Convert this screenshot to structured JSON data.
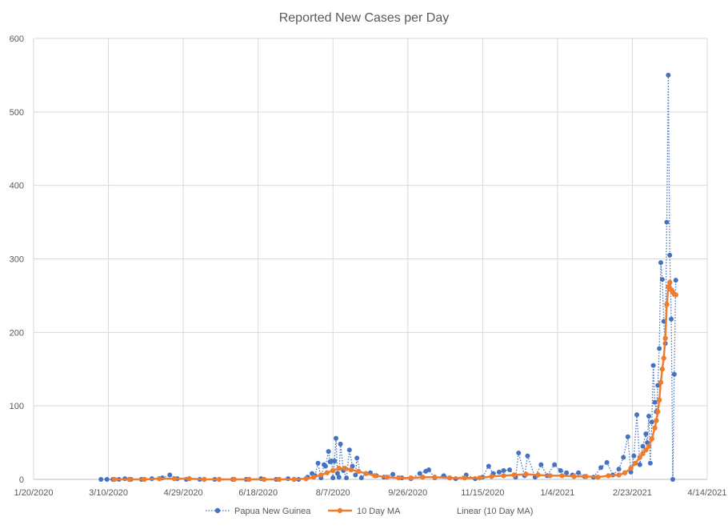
{
  "chart_data": {
    "type": "line",
    "title": "Reported New Cases per Day",
    "xlabel": "",
    "ylabel": "",
    "ylim": [
      0,
      600
    ],
    "yticks": [
      0,
      100,
      200,
      300,
      400,
      500,
      600
    ],
    "xlim": [
      "2020-01-20",
      "2021-04-14"
    ],
    "xticks": [
      "1/20/2020",
      "3/10/2020",
      "4/29/2020",
      "6/18/2020",
      "8/7/2020",
      "9/26/2020",
      "11/15/2020",
      "1/4/2021",
      "2/23/2021",
      "4/14/2021"
    ],
    "grid": true,
    "legend": "bottom",
    "colors": {
      "series": "#4472c4",
      "ma": "#ed7d31",
      "grid": "#d9d9d9",
      "text": "#595959"
    },
    "series": [
      {
        "name": "Papua New Guinea",
        "style": "dotted-markers",
        "points": [
          [
            "2020-03-05",
            0
          ],
          [
            "2020-03-09",
            0
          ],
          [
            "2020-03-13",
            0
          ],
          [
            "2020-03-17",
            0
          ],
          [
            "2020-03-21",
            1
          ],
          [
            "2020-03-25",
            0
          ],
          [
            "2020-04-01",
            0
          ],
          [
            "2020-04-08",
            1
          ],
          [
            "2020-04-15",
            2
          ],
          [
            "2020-04-20",
            6
          ],
          [
            "2020-04-25",
            1
          ],
          [
            "2020-05-01",
            0
          ],
          [
            "2020-05-10",
            0
          ],
          [
            "2020-05-20",
            0
          ],
          [
            "2020-06-01",
            0
          ],
          [
            "2020-06-10",
            0
          ],
          [
            "2020-06-20",
            1
          ],
          [
            "2020-06-30",
            0
          ],
          [
            "2020-07-08",
            1
          ],
          [
            "2020-07-15",
            0
          ],
          [
            "2020-07-21",
            3
          ],
          [
            "2020-07-24",
            8
          ],
          [
            "2020-07-26",
            5
          ],
          [
            "2020-07-28",
            22
          ],
          [
            "2020-07-30",
            2
          ],
          [
            "2020-08-01",
            20
          ],
          [
            "2020-08-02",
            18
          ],
          [
            "2020-08-04",
            38
          ],
          [
            "2020-08-05",
            24
          ],
          [
            "2020-08-06",
            25
          ],
          [
            "2020-08-07",
            2
          ],
          [
            "2020-08-08",
            25
          ],
          [
            "2020-08-09",
            56
          ],
          [
            "2020-08-10",
            8
          ],
          [
            "2020-08-11",
            3
          ],
          [
            "2020-08-12",
            48
          ],
          [
            "2020-08-14",
            12
          ],
          [
            "2020-08-16",
            2
          ],
          [
            "2020-08-18",
            40
          ],
          [
            "2020-08-20",
            18
          ],
          [
            "2020-08-22",
            6
          ],
          [
            "2020-08-23",
            29
          ],
          [
            "2020-08-26",
            2
          ],
          [
            "2020-08-29",
            8
          ],
          [
            "2020-09-01",
            9
          ],
          [
            "2020-09-05",
            5
          ],
          [
            "2020-09-10",
            3
          ],
          [
            "2020-09-16",
            7
          ],
          [
            "2020-09-22",
            2
          ],
          [
            "2020-09-28",
            1
          ],
          [
            "2020-10-04",
            8
          ],
          [
            "2020-10-08",
            11
          ],
          [
            "2020-10-10",
            13
          ],
          [
            "2020-10-14",
            2
          ],
          [
            "2020-10-20",
            5
          ],
          [
            "2020-10-28",
            1
          ],
          [
            "2020-11-04",
            6
          ],
          [
            "2020-11-10",
            1
          ],
          [
            "2020-11-15",
            3
          ],
          [
            "2020-11-19",
            18
          ],
          [
            "2020-11-22",
            8
          ],
          [
            "2020-11-26",
            10
          ],
          [
            "2020-11-29",
            12
          ],
          [
            "2020-12-03",
            13
          ],
          [
            "2020-12-07",
            3
          ],
          [
            "2020-12-09",
            36
          ],
          [
            "2020-12-13",
            5
          ],
          [
            "2020-12-15",
            32
          ],
          [
            "2020-12-20",
            3
          ],
          [
            "2020-12-24",
            20
          ],
          [
            "2020-12-28",
            5
          ],
          [
            "2021-01-02",
            20
          ],
          [
            "2021-01-06",
            12
          ],
          [
            "2021-01-10",
            9
          ],
          [
            "2021-01-14",
            6
          ],
          [
            "2021-01-18",
            9
          ],
          [
            "2021-01-22",
            4
          ],
          [
            "2021-01-28",
            3
          ],
          [
            "2021-02-02",
            16
          ],
          [
            "2021-02-06",
            23
          ],
          [
            "2021-02-10",
            6
          ],
          [
            "2021-02-14",
            14
          ],
          [
            "2021-02-17",
            30
          ],
          [
            "2021-02-20",
            58
          ],
          [
            "2021-02-22",
            10
          ],
          [
            "2021-02-24",
            32
          ],
          [
            "2021-02-26",
            88
          ],
          [
            "2021-02-28",
            20
          ],
          [
            "2021-03-02",
            45
          ],
          [
            "2021-03-04",
            62
          ],
          [
            "2021-03-05",
            50
          ],
          [
            "2021-03-06",
            86
          ],
          [
            "2021-03-07",
            22
          ],
          [
            "2021-03-08",
            78
          ],
          [
            "2021-03-09",
            155
          ],
          [
            "2021-03-10",
            105
          ],
          [
            "2021-03-11",
            92
          ],
          [
            "2021-03-12",
            128
          ],
          [
            "2021-03-13",
            178
          ],
          [
            "2021-03-14",
            295
          ],
          [
            "2021-03-15",
            272
          ],
          [
            "2021-03-16",
            215
          ],
          [
            "2021-03-17",
            185
          ],
          [
            "2021-03-18",
            350
          ],
          [
            "2021-03-19",
            550
          ],
          [
            "2021-03-20",
            305
          ],
          [
            "2021-03-21",
            218
          ],
          [
            "2021-03-22",
            0
          ],
          [
            "2021-03-23",
            143
          ],
          [
            "2021-03-24",
            271
          ]
        ]
      },
      {
        "name": "10 Day MA",
        "style": "solid-markers",
        "points": [
          [
            "2020-03-14",
            0
          ],
          [
            "2020-03-24",
            0
          ],
          [
            "2020-04-03",
            0
          ],
          [
            "2020-04-13",
            1
          ],
          [
            "2020-04-23",
            1
          ],
          [
            "2020-05-03",
            1
          ],
          [
            "2020-05-13",
            0
          ],
          [
            "2020-05-23",
            0
          ],
          [
            "2020-06-02",
            0
          ],
          [
            "2020-06-12",
            0
          ],
          [
            "2020-06-22",
            0
          ],
          [
            "2020-07-02",
            0
          ],
          [
            "2020-07-12",
            0
          ],
          [
            "2020-07-20",
            1
          ],
          [
            "2020-07-25",
            3
          ],
          [
            "2020-07-30",
            6
          ],
          [
            "2020-08-03",
            9
          ],
          [
            "2020-08-07",
            12
          ],
          [
            "2020-08-11",
            15
          ],
          [
            "2020-08-15",
            15
          ],
          [
            "2020-08-19",
            13
          ],
          [
            "2020-08-24",
            11
          ],
          [
            "2020-08-29",
            8
          ],
          [
            "2020-09-04",
            5
          ],
          [
            "2020-09-12",
            3
          ],
          [
            "2020-09-20",
            2
          ],
          [
            "2020-09-28",
            2
          ],
          [
            "2020-10-06",
            3
          ],
          [
            "2020-10-14",
            3
          ],
          [
            "2020-10-24",
            2
          ],
          [
            "2020-11-03",
            2
          ],
          [
            "2020-11-13",
            2
          ],
          [
            "2020-11-21",
            4
          ],
          [
            "2020-11-29",
            5
          ],
          [
            "2020-12-06",
            6
          ],
          [
            "2020-12-14",
            7
          ],
          [
            "2020-12-22",
            6
          ],
          [
            "2020-12-30",
            5
          ],
          [
            "2021-01-07",
            5
          ],
          [
            "2021-01-15",
            4
          ],
          [
            "2021-01-23",
            4
          ],
          [
            "2021-01-31",
            3
          ],
          [
            "2021-02-07",
            5
          ],
          [
            "2021-02-14",
            6
          ],
          [
            "2021-02-18",
            9
          ],
          [
            "2021-02-22",
            15
          ],
          [
            "2021-02-25",
            22
          ],
          [
            "2021-02-28",
            30
          ],
          [
            "2021-03-02",
            35
          ],
          [
            "2021-03-04",
            40
          ],
          [
            "2021-03-06",
            45
          ],
          [
            "2021-03-08",
            55
          ],
          [
            "2021-03-10",
            70
          ],
          [
            "2021-03-11",
            80
          ],
          [
            "2021-03-12",
            92
          ],
          [
            "2021-03-13",
            108
          ],
          [
            "2021-03-14",
            132
          ],
          [
            "2021-03-15",
            150
          ],
          [
            "2021-03-16",
            165
          ],
          [
            "2021-03-17",
            192
          ],
          [
            "2021-03-18",
            238
          ],
          [
            "2021-03-19",
            262
          ],
          [
            "2021-03-20",
            268
          ],
          [
            "2021-03-21",
            258
          ],
          [
            "2021-03-22",
            255
          ],
          [
            "2021-03-23",
            252
          ],
          [
            "2021-03-24",
            251
          ]
        ]
      },
      {
        "name": "Linear (10 Day MA)",
        "style": "none",
        "points": []
      }
    ]
  }
}
